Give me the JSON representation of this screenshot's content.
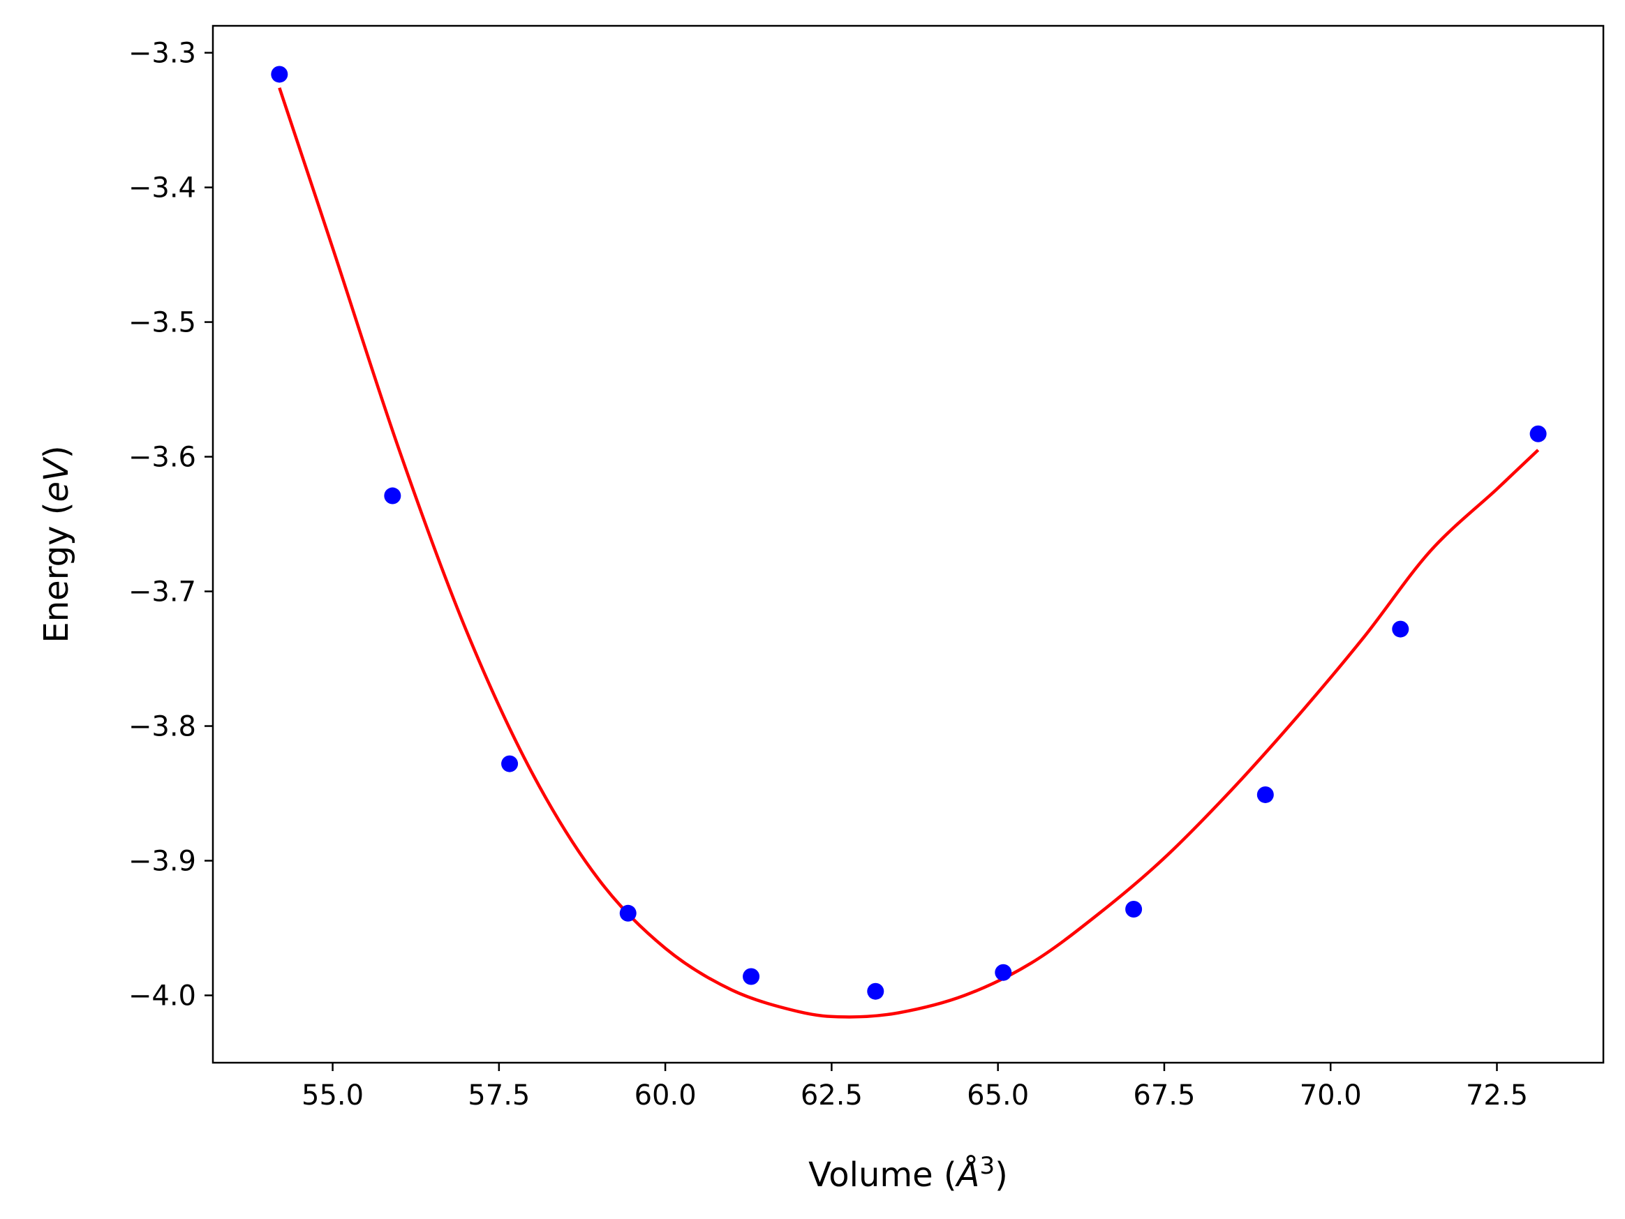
{
  "chart_data": {
    "type": "scatter",
    "xlabel": {
      "prefix": "Volume (",
      "symbol": "Å",
      "sup": "3",
      "suffix": ")"
    },
    "ylabel": {
      "prefix": "Energy (",
      "unit": "eV",
      "suffix": ")"
    },
    "xlim": [
      53.2,
      74.1
    ],
    "ylim": [
      -4.05,
      -3.28
    ],
    "x_ticks": [
      55.0,
      57.5,
      60.0,
      62.5,
      65.0,
      67.5,
      70.0,
      72.5
    ],
    "x_tick_labels": [
      "55.0",
      "57.5",
      "60.0",
      "62.5",
      "65.0",
      "67.5",
      "70.0",
      "72.5"
    ],
    "y_ticks": [
      -3.3,
      -3.4,
      -3.5,
      -3.6,
      -3.7,
      -3.8,
      -3.9,
      -4.0
    ],
    "y_tick_labels": [
      "−3.3",
      "−3.4",
      "−3.5",
      "−3.6",
      "−3.7",
      "−3.8",
      "−3.9",
      "−4.0"
    ],
    "grid": false,
    "series": [
      {
        "kind": "points",
        "color": "#0000ff",
        "x": [
          54.2,
          55.9,
          57.66,
          59.44,
          61.29,
          63.16,
          65.08,
          67.04,
          69.02,
          71.05,
          73.12
        ],
        "y": [
          -3.316,
          -3.629,
          -3.828,
          -3.939,
          -3.986,
          -3.997,
          -3.983,
          -3.936,
          -3.851,
          -3.728,
          -3.583
        ]
      },
      {
        "kind": "fit-curve",
        "color": "#ff0000",
        "x": [
          54.2,
          55.0,
          56.0,
          57.0,
          58.0,
          59.0,
          60.0,
          61.0,
          62.0,
          62.7,
          63.5,
          64.5,
          65.5,
          66.5,
          67.5,
          68.5,
          69.5,
          70.5,
          71.5,
          72.5,
          73.12
        ],
        "y": [
          -3.326,
          -3.445,
          -3.595,
          -3.728,
          -3.835,
          -3.914,
          -3.965,
          -3.996,
          -4.012,
          -4.016,
          -4.013,
          -4.0,
          -3.976,
          -3.94,
          -3.898,
          -3.848,
          -3.793,
          -3.734,
          -3.67,
          -3.624,
          -3.595
        ]
      }
    ]
  }
}
